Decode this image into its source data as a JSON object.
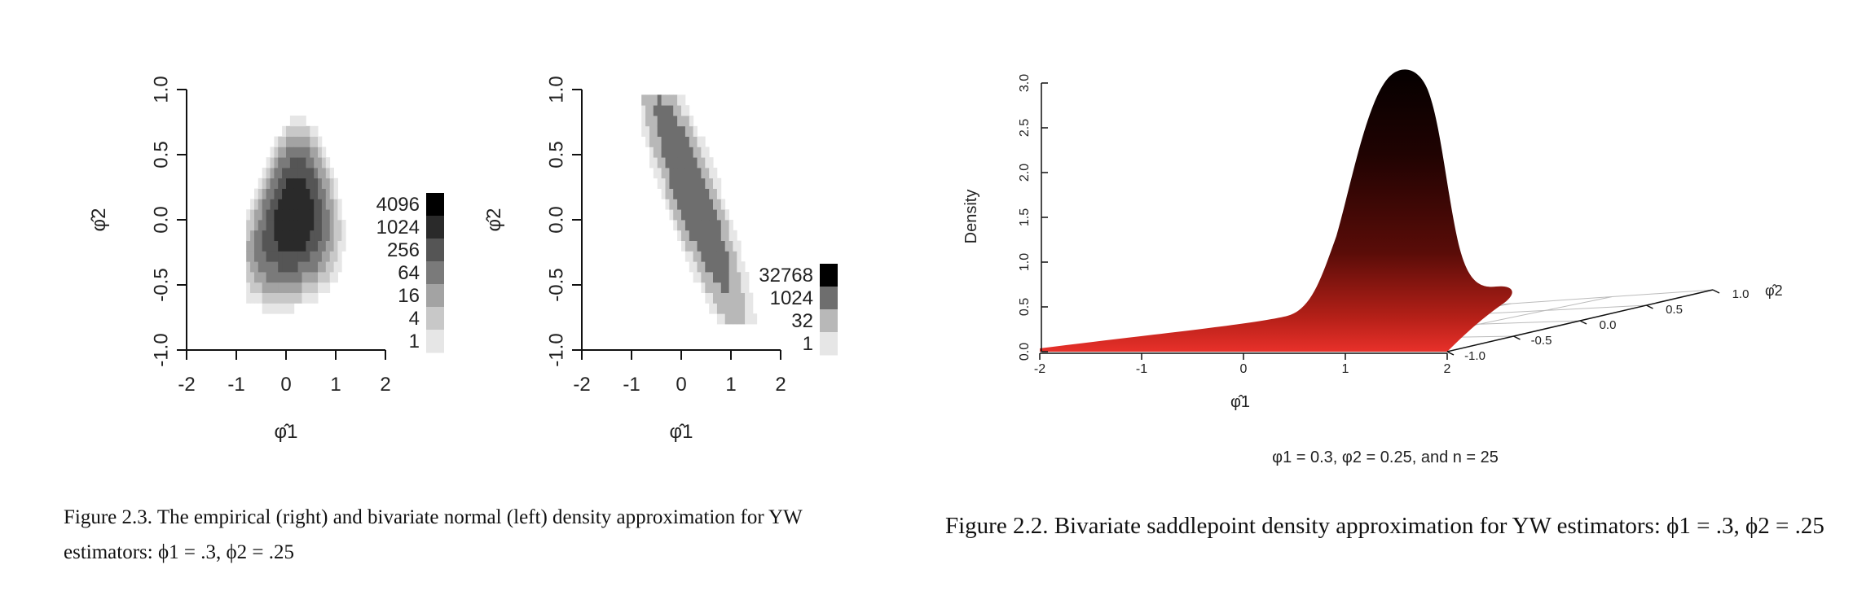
{
  "chart_data": [
    {
      "type": "heatmap",
      "panel": "left",
      "xlabel": "φ̂1",
      "ylabel": "φ̂2",
      "xlim": [
        -2,
        2
      ],
      "ylim": [
        -1,
        1
      ],
      "x_ticks": [
        "-2",
        "-1",
        "0",
        "1",
        "2"
      ],
      "y_ticks": [
        "-1.0",
        "-0.5",
        "0.0",
        "0.5",
        "1.0"
      ],
      "legend_values": [
        "4096",
        "1024",
        "256",
        "64",
        "16",
        "4",
        "1"
      ],
      "legend_colors": [
        "#000000",
        "#2a2a2a",
        "#555555",
        "#7a7a7a",
        "#a3a3a3",
        "#c8c8c8",
        "#e6e6e6"
      ],
      "grid": false
    },
    {
      "type": "heatmap",
      "panel": "middle",
      "xlabel": "φ̂1",
      "ylabel": "φ̂2",
      "xlim": [
        -2,
        2
      ],
      "ylim": [
        -1,
        1
      ],
      "x_ticks": [
        "-2",
        "-1",
        "0",
        "1",
        "2"
      ],
      "y_ticks": [
        "-1.0",
        "-0.5",
        "0.0",
        "0.5",
        "1.0"
      ],
      "legend_values": [
        "32768",
        "1024",
        "32",
        "1"
      ],
      "legend_colors": [
        "#000000",
        "#6e6e6e",
        "#b8b8b8",
        "#e6e6e6"
      ],
      "grid": false
    },
    {
      "type": "surface3d",
      "panel": "right",
      "xlabel": "φ̂1",
      "ylabel": "φ̂2",
      "zlabel": "Density",
      "x_ticks": [
        "-2",
        "-1",
        "0",
        "1",
        "2"
      ],
      "y_ticks": [
        "-1.0",
        "-0.5",
        "0.0",
        "0.5",
        "1.0"
      ],
      "z_ticks": [
        "0.0",
        "0.5",
        "1.0",
        "1.5",
        "2.0",
        "2.5",
        "3.0"
      ],
      "peak_density": 3.1,
      "subtitle": "φ1 = 0.3, φ2 = 0.25, and n = 25",
      "color_low": "#e8302a",
      "color_high": "#000000"
    }
  ],
  "captions": {
    "left": "Figure 2.3. The empirical (right) and bivariate normal (left) density approximation for YW estimators: ϕ1 = .3, ϕ2 = .25",
    "right": "Figure 2.2. Bivariate saddlepoint density approximation for YW estimators: ϕ1 = .3, ϕ2 = .25"
  }
}
